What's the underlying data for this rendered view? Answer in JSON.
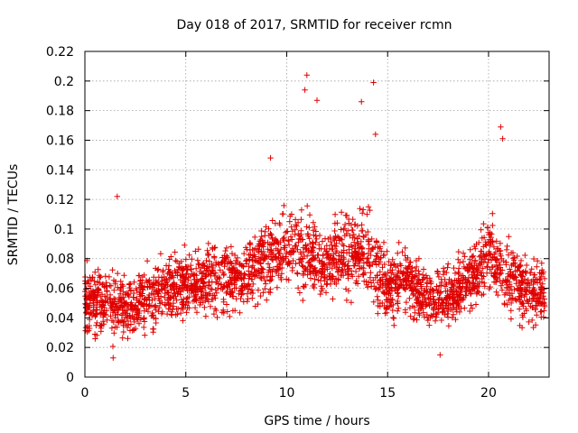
{
  "chart_data": {
    "type": "scatter",
    "title": "Day 018 of 2017, SRMTID for receiver rcmn",
    "xlabel": "GPS time / hours",
    "ylabel": "SRMTID / TECUs",
    "xlim": [
      0,
      23
    ],
    "ylim": [
      0,
      0.22
    ],
    "xticks": [
      0,
      5,
      10,
      15,
      20
    ],
    "xtick_labels": [
      "0",
      "5",
      "10",
      "15",
      "20"
    ],
    "yticks": [
      0,
      0.02,
      0.04,
      0.06,
      0.08,
      0.1,
      0.12,
      0.14,
      0.16,
      0.18,
      0.2,
      0.22
    ],
    "ytick_labels": [
      "0",
      "0.02",
      "0.04",
      "0.06",
      "0.08",
      "0.1",
      "0.12",
      "0.14",
      "0.16",
      "0.18",
      "0.2",
      "0.22"
    ],
    "grid": true,
    "marker": "+",
    "marker_color": "#e00000",
    "series": [
      {
        "name": "SRMTID",
        "x_range": [
          0,
          22.8
        ],
        "point_count": 2600,
        "trend": [
          [
            0.0,
            0.055
          ],
          [
            1.0,
            0.05
          ],
          [
            2.0,
            0.048
          ],
          [
            3.0,
            0.052
          ],
          [
            4.0,
            0.058
          ],
          [
            5.0,
            0.062
          ],
          [
            6.0,
            0.064
          ],
          [
            7.0,
            0.065
          ],
          [
            8.0,
            0.068
          ],
          [
            9.0,
            0.08
          ],
          [
            10.0,
            0.088
          ],
          [
            11.0,
            0.084
          ],
          [
            12.0,
            0.078
          ],
          [
            13.0,
            0.082
          ],
          [
            14.0,
            0.086
          ],
          [
            15.0,
            0.062
          ],
          [
            16.0,
            0.066
          ],
          [
            17.0,
            0.052
          ],
          [
            18.0,
            0.055
          ],
          [
            19.0,
            0.065
          ],
          [
            20.0,
            0.08
          ],
          [
            21.0,
            0.068
          ],
          [
            22.0,
            0.058
          ],
          [
            22.8,
            0.055
          ]
        ],
        "notable_points": [
          {
            "x": 1.4,
            "y": 0.013
          },
          {
            "x": 1.6,
            "y": 0.122
          },
          {
            "x": 9.2,
            "y": 0.148
          },
          {
            "x": 11.0,
            "y": 0.204
          },
          {
            "x": 10.9,
            "y": 0.194
          },
          {
            "x": 11.5,
            "y": 0.187
          },
          {
            "x": 13.7,
            "y": 0.186
          },
          {
            "x": 14.3,
            "y": 0.199
          },
          {
            "x": 14.4,
            "y": 0.164
          },
          {
            "x": 20.6,
            "y": 0.169
          },
          {
            "x": 20.7,
            "y": 0.161
          },
          {
            "x": 17.6,
            "y": 0.015
          }
        ]
      }
    ]
  }
}
